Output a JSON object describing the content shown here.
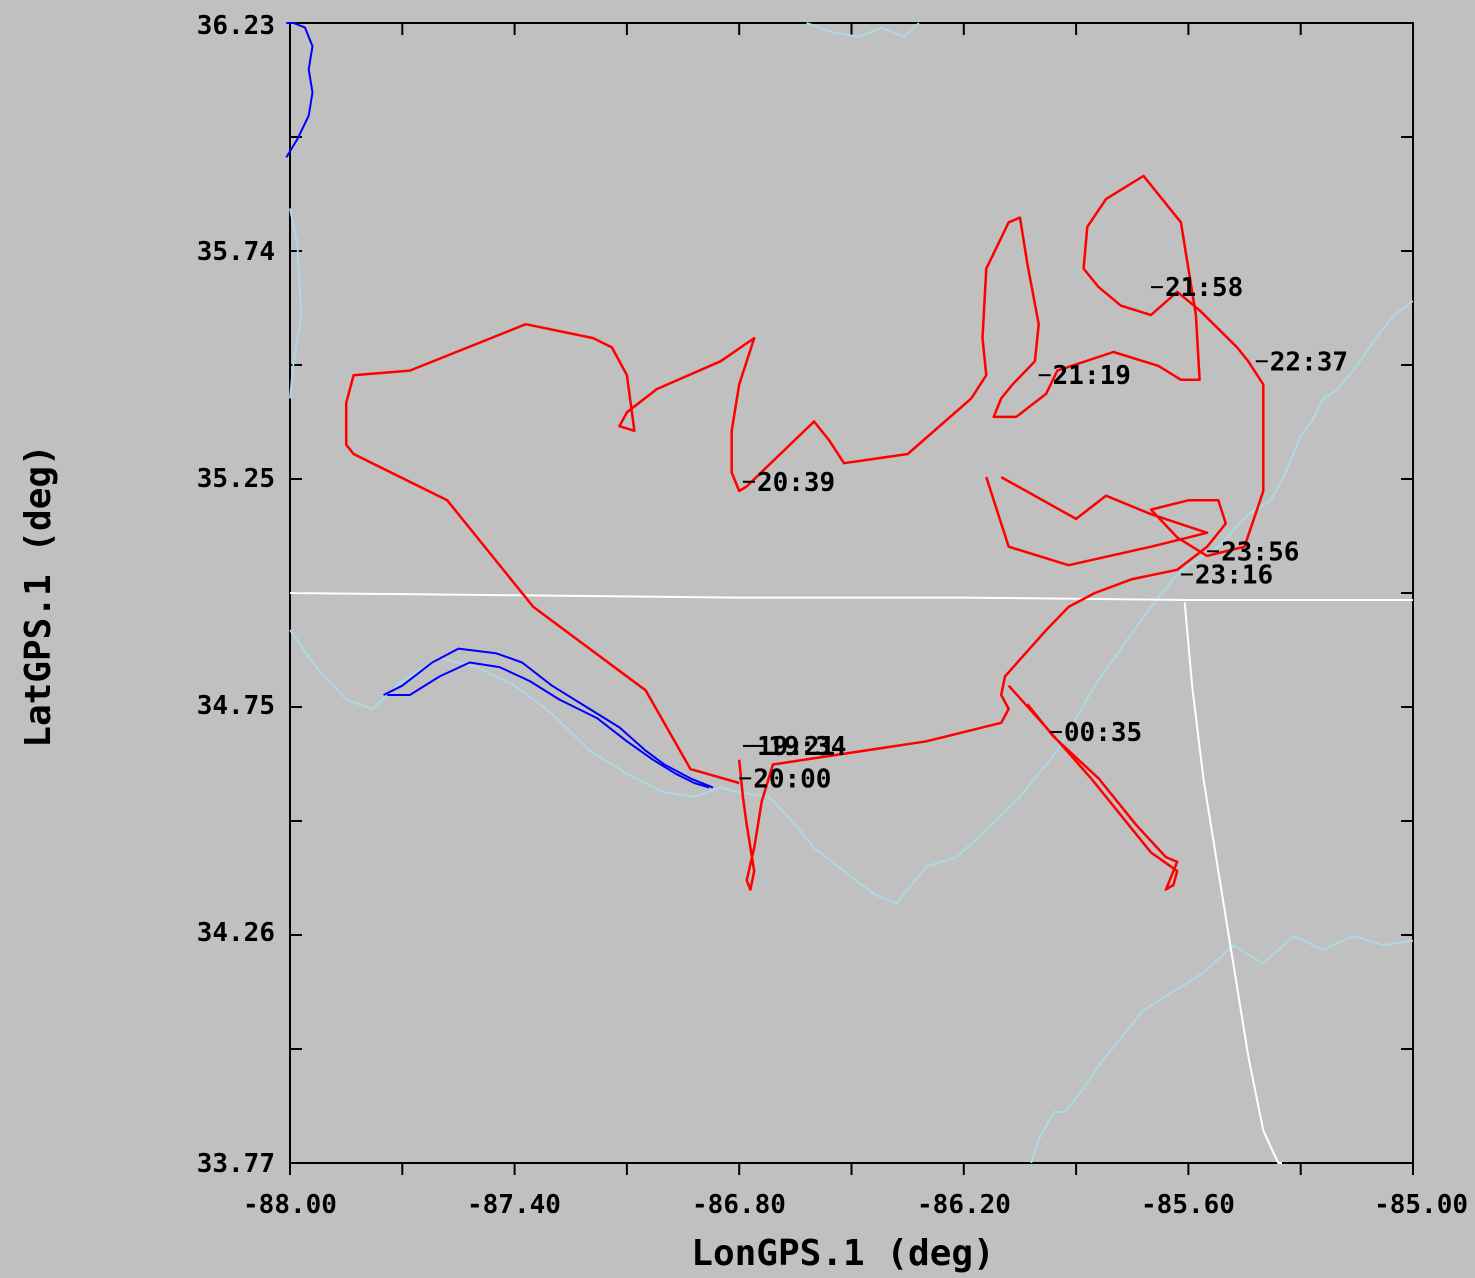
{
  "chart_data": {
    "type": "line",
    "xlabel": "LonGPS.1 (deg)",
    "ylabel": "LatGPS.1 (deg)",
    "xlim": [
      -88.0,
      -85.0
    ],
    "ylim": [
      33.77,
      36.23
    ],
    "x_ticks": [
      "-88.00",
      "-87.40",
      "-86.80",
      "-86.20",
      "-85.60",
      "-85.00"
    ],
    "y_ticks": [
      "33.77",
      "34.26",
      "34.75",
      "35.25",
      "35.74",
      "36.23"
    ],
    "colors": {
      "flight_track": "#ff0000",
      "water": "#0000ff",
      "coastline": "#add8e6",
      "border": "#ffffff",
      "labels": "#000000"
    },
    "series": [
      {
        "role": "flight_track",
        "x": [
          -86.8,
          -86.79,
          -86.78,
          -86.76,
          -86.77,
          -86.78,
          -86.76,
          -86.74,
          -86.71,
          -86.3,
          -86.1,
          -86.08,
          -86.1,
          -86.09,
          -85.98,
          -85.92,
          -85.85,
          -85.75,
          -85.63,
          -85.55,
          -85.5,
          -85.52,
          -85.6,
          -85.7,
          -85.63,
          -85.55,
          -85.45,
          -85.4,
          -85.4,
          -85.44,
          -85.47,
          -85.57,
          -85.63,
          -85.7,
          -85.78,
          -85.84,
          -85.88,
          -85.87,
          -85.82,
          -85.72,
          -85.62,
          -85.58,
          -85.57,
          -85.62,
          -85.68,
          -85.8,
          -85.95,
          -85.98,
          -86.06,
          -86.12,
          -86.1,
          -86.07,
          -86.01,
          -86.0,
          -86.03,
          -86.05,
          -86.08,
          -86.14,
          -86.15,
          -86.14,
          -86.18,
          -86.35,
          -86.52,
          -86.56,
          -86.6,
          -86.78,
          -86.8,
          -86.82,
          -86.82,
          -86.8,
          -86.76,
          -86.85,
          -87.02,
          -87.1,
          -87.12,
          -87.08,
          -87.1,
          -87.14,
          -87.19,
          -87.37,
          -87.68,
          -87.83,
          -87.85,
          -87.85,
          -87.83,
          -87.58,
          -87.35,
          -87.05,
          -86.93,
          -86.8
        ],
        "y": [
          34.64,
          34.56,
          34.5,
          34.4,
          34.36,
          34.38,
          34.45,
          34.55,
          34.63,
          34.68,
          34.72,
          34.75,
          34.78,
          34.82,
          34.92,
          34.97,
          35.0,
          35.03,
          35.05,
          35.1,
          35.15,
          35.2,
          35.2,
          35.18,
          35.12,
          35.08,
          35.1,
          35.22,
          35.45,
          35.5,
          35.53,
          35.61,
          35.65,
          35.6,
          35.62,
          35.66,
          35.7,
          35.79,
          35.85,
          35.9,
          35.8,
          35.6,
          35.46,
          35.46,
          35.49,
          35.52,
          35.48,
          35.43,
          35.38,
          35.38,
          35.42,
          35.45,
          35.5,
          35.58,
          35.71,
          35.81,
          35.8,
          35.7,
          35.55,
          35.47,
          35.42,
          35.3,
          35.28,
          35.33,
          35.37,
          35.23,
          35.22,
          35.26,
          35.35,
          35.45,
          35.55,
          35.5,
          35.44,
          35.39,
          35.36,
          35.35,
          35.47,
          35.53,
          35.55,
          35.58,
          35.48,
          35.47,
          35.41,
          35.32,
          35.3,
          35.2,
          34.97,
          34.79,
          34.62,
          34.59
        ]
      },
      {
        "role": "flight_track",
        "x": [
          -86.14,
          -86.08,
          -85.92,
          -85.7,
          -85.55,
          -85.7,
          -85.82,
          -85.9,
          -86.1
        ],
        "y": [
          35.25,
          35.1,
          35.06,
          35.1,
          35.13,
          35.17,
          35.21,
          35.16,
          35.25
        ]
      },
      {
        "role": "flight_track",
        "x": [
          -86.08,
          -85.98,
          -85.86,
          -85.7,
          -85.63,
          -85.64,
          -85.66,
          -85.63,
          -85.66,
          -85.74,
          -85.84,
          -85.96,
          -86.03
        ],
        "y": [
          34.8,
          34.71,
          34.6,
          34.44,
          34.4,
          34.37,
          34.36,
          34.42,
          34.43,
          34.5,
          34.6,
          34.69,
          34.76
        ]
      },
      {
        "role": "water",
        "x": [
          -87.75,
          -87.7,
          -87.62,
          -87.55,
          -87.45,
          -87.38,
          -87.3,
          -87.2,
          -87.12,
          -87.05,
          -87.0,
          -86.93,
          -86.87
        ],
        "y": [
          34.78,
          34.8,
          34.85,
          34.88,
          34.87,
          34.85,
          34.8,
          34.75,
          34.71,
          34.66,
          34.63,
          34.6,
          34.58
        ]
      },
      {
        "role": "water",
        "x": [
          -87.74,
          -87.68,
          -87.6,
          -87.52,
          -87.44,
          -87.36,
          -87.28,
          -87.18,
          -87.1,
          -87.03,
          -86.97,
          -86.92,
          -86.88
        ],
        "y": [
          34.78,
          34.78,
          34.82,
          34.85,
          34.84,
          34.81,
          34.77,
          34.73,
          34.68,
          34.64,
          34.61,
          34.59,
          34.58
        ]
      },
      {
        "role": "water",
        "x": [
          -88.01,
          -87.98,
          -87.95,
          -87.94,
          -87.95,
          -87.94,
          -87.96,
          -87.99,
          -88.01
        ],
        "y": [
          35.94,
          35.98,
          36.03,
          36.08,
          36.13,
          36.18,
          36.22,
          36.23,
          36.23
        ]
      },
      {
        "role": "coastline",
        "x": [
          -88.0,
          -87.93,
          -87.85,
          -87.78,
          -87.7,
          -87.6,
          -87.5,
          -87.4,
          -87.3,
          -87.2,
          -87.1,
          -87.0,
          -86.92,
          -86.85,
          -86.8,
          -86.72,
          -86.66,
          -86.6,
          -86.52,
          -86.44,
          -86.38,
          -86.3,
          -86.22,
          -86.15,
          -86.05,
          -85.95,
          -85.85,
          -85.78,
          -85.7,
          -85.64,
          -85.6
        ],
        "y": [
          34.92,
          34.84,
          34.77,
          34.75,
          34.81,
          34.86,
          34.84,
          34.8,
          34.74,
          34.66,
          34.61,
          34.57,
          34.56,
          34.58,
          34.57,
          34.56,
          34.51,
          34.45,
          34.4,
          34.35,
          34.33,
          34.41,
          34.43,
          34.48,
          34.56,
          34.66,
          34.8,
          34.88,
          34.97,
          35.03,
          35.06
        ]
      },
      {
        "role": "coastline",
        "x": [
          -85.6,
          -85.52,
          -85.44,
          -85.38,
          -85.34,
          -85.3,
          -85.27,
          -85.24,
          -85.2,
          -85.15,
          -85.1,
          -85.05,
          -85.0
        ],
        "y": [
          35.06,
          35.1,
          35.17,
          35.2,
          35.26,
          35.34,
          35.37,
          35.42,
          35.44,
          35.49,
          35.55,
          35.6,
          35.63
        ]
      },
      {
        "role": "coastline",
        "x": [
          -85.0,
          -85.08,
          -85.16,
          -85.24,
          -85.32,
          -85.4,
          -85.48,
          -85.56,
          -85.64,
          -85.72,
          -85.78,
          -85.84,
          -85.89,
          -85.93,
          -85.96,
          -86.0,
          -86.02
        ],
        "y": [
          34.25,
          34.24,
          34.26,
          34.23,
          34.26,
          34.2,
          34.24,
          34.18,
          34.14,
          34.1,
          34.04,
          33.98,
          33.92,
          33.88,
          33.88,
          33.82,
          33.77
        ]
      },
      {
        "role": "coastline",
        "x": [
          -88.0,
          -87.98,
          -87.97,
          -87.99,
          -88.0
        ],
        "y": [
          35.83,
          35.75,
          35.6,
          35.5,
          35.42
        ]
      },
      {
        "role": "coastline",
        "x": [
          -86.62,
          -86.55,
          -86.48,
          -86.42,
          -86.36,
          -86.32
        ],
        "y": [
          36.23,
          36.21,
          36.2,
          36.22,
          36.2,
          36.23
        ]
      },
      {
        "role": "border",
        "x": [
          -88.0,
          -87.4,
          -86.8,
          -86.2,
          -85.6,
          -85.0
        ],
        "y": [
          35.0,
          34.995,
          34.99,
          34.99,
          34.985,
          34.985
        ]
      },
      {
        "role": "border",
        "x": [
          -85.61,
          -85.59,
          -85.56,
          -85.52,
          -85.48,
          -85.44,
          -85.4,
          -85.36,
          -85.35
        ],
        "y": [
          34.98,
          34.8,
          34.6,
          34.4,
          34.2,
          34.0,
          33.84,
          33.77,
          33.77
        ]
      }
    ],
    "time_labels": [
      {
        "text": "20:39",
        "lon": -86.79,
        "lat": 35.24
      },
      {
        "text": "21:19",
        "lon": -86.0,
        "lat": 35.47
      },
      {
        "text": "21:58",
        "lon": -85.7,
        "lat": 35.66
      },
      {
        "text": "22:37",
        "lon": -85.42,
        "lat": 35.5
      },
      {
        "text": "23:16",
        "lon": -85.62,
        "lat": 35.04
      },
      {
        "text": "23:56",
        "lon": -85.55,
        "lat": 35.09
      },
      {
        "text": "00:35",
        "lon": -85.97,
        "lat": 34.7
      },
      {
        "text": "20:00",
        "lon": -86.8,
        "lat": 34.6
      },
      {
        "text": "19:21",
        "lon": -86.79,
        "lat": 34.67
      },
      {
        "text": "19:34",
        "lon": -86.76,
        "lat": 34.67
      }
    ]
  }
}
